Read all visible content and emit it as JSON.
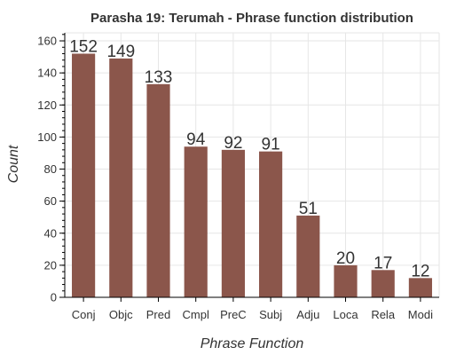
{
  "chart_data": {
    "type": "bar",
    "title": "Parasha 19: Terumah - Phrase function distribution",
    "xlabel": "Phrase Function",
    "ylabel": "Count",
    "categories": [
      "Conj",
      "Objc",
      "Pred",
      "Cmpl",
      "PreC",
      "Subj",
      "Adju",
      "Loca",
      "Rela",
      "Modi"
    ],
    "values": [
      152,
      149,
      133,
      94,
      92,
      91,
      51,
      20,
      17,
      12
    ],
    "ylim": [
      0,
      165
    ],
    "yticks": [
      0,
      20,
      40,
      60,
      80,
      100,
      120,
      140,
      160
    ],
    "minor_ytick_step": 4,
    "grid": true,
    "bar_color": "#8b564b",
    "data_labels": true
  }
}
